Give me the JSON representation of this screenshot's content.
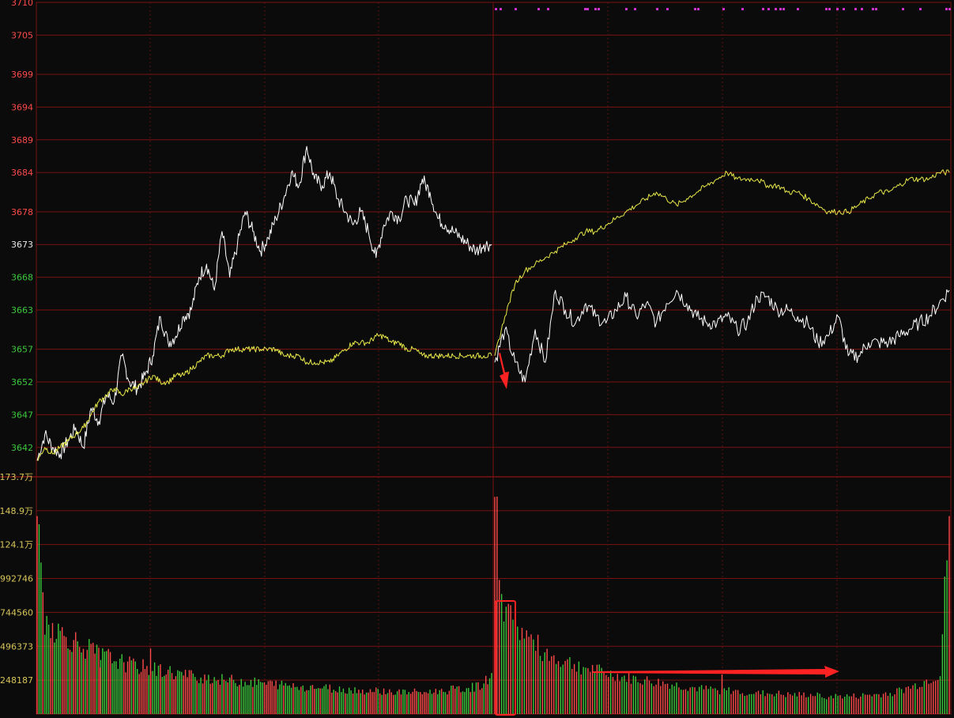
{
  "colors": {
    "background": "#0b0b0b",
    "grid": "#7a1212",
    "grid_dotted": "#5a1010",
    "price_line": "#ffffff",
    "avg_line": "#e8e84a",
    "up_color": "#ff4a4a",
    "down_color": "#3cc83c",
    "neutral_color": "#e6e6e6",
    "volume_label_color": "#d8c45a",
    "marker_color": "#cc33cc",
    "annotation_color": "#ff2222"
  },
  "chart_data": [
    {
      "type": "line",
      "title": "",
      "y_ticks": [
        {
          "value": 3710,
          "label": "3710",
          "kind": "up"
        },
        {
          "value": 3705,
          "label": "3705",
          "kind": "up"
        },
        {
          "value": 3699,
          "label": "3699",
          "kind": "up"
        },
        {
          "value": 3694,
          "label": "3694",
          "kind": "up"
        },
        {
          "value": 3689,
          "label": "3689",
          "kind": "up"
        },
        {
          "value": 3684,
          "label": "3684",
          "kind": "up"
        },
        {
          "value": 3678,
          "label": "3678",
          "kind": "up"
        },
        {
          "value": 3673,
          "label": "3673",
          "kind": "neutral"
        },
        {
          "value": 3668,
          "label": "3668",
          "kind": "down"
        },
        {
          "value": 3663,
          "label": "3663",
          "kind": "down"
        },
        {
          "value": 3657,
          "label": "3657",
          "kind": "down"
        },
        {
          "value": 3652,
          "label": "3652",
          "kind": "down"
        },
        {
          "value": 3647,
          "label": "3647",
          "kind": "down"
        },
        {
          "value": 3642,
          "label": "3642",
          "kind": "down"
        }
      ],
      "ylim": [
        3637.5,
        3710
      ],
      "x_sessions": 2,
      "series": [
        {
          "role": "price",
          "session1": [
            3640,
            3644,
            3642,
            3641,
            3643,
            3645,
            3642,
            3648,
            3646,
            3650,
            3649,
            3656,
            3652,
            3651,
            3653,
            3656,
            3662,
            3658,
            3659,
            3662,
            3663,
            3668,
            3670,
            3666,
            3675,
            3668,
            3673,
            3678,
            3675,
            3672,
            3674,
            3677,
            3680,
            3684,
            3682,
            3688,
            3683,
            3682,
            3684,
            3680,
            3678,
            3676,
            3678,
            3675,
            3671,
            3676,
            3678,
            3677,
            3680,
            3679,
            3683,
            3681,
            3677,
            3676,
            3675,
            3674,
            3673,
            3672,
            3673,
            3673
          ],
          "session2": [
            3655,
            3660,
            3655,
            3652,
            3660,
            3655,
            3666,
            3663,
            3661,
            3664,
            3662,
            3661,
            3663,
            3665,
            3662,
            3664,
            3661,
            3664,
            3666,
            3664,
            3662,
            3661,
            3661,
            3662,
            3660,
            3661,
            3665,
            3665,
            3663,
            3663,
            3662,
            3661,
            3658,
            3659,
            3662,
            3656,
            3656,
            3658,
            3658,
            3658,
            3659,
            3660,
            3661,
            3662,
            3664,
            3666
          ]
        },
        {
          "role": "average",
          "session1": [
            3640,
            3642,
            3641,
            3642,
            3643,
            3644,
            3645,
            3647,
            3649,
            3650,
            3651,
            3650,
            3651,
            3651,
            3652,
            3653,
            3652,
            3652,
            3653,
            3653,
            3654,
            3655,
            3656,
            3656,
            3656,
            3657,
            3657,
            3657,
            3657,
            3657,
            3657,
            3657,
            3656,
            3656,
            3656,
            3655,
            3655,
            3655,
            3655,
            3656,
            3657,
            3658,
            3658,
            3658,
            3659,
            3659,
            3658,
            3658,
            3657,
            3657,
            3656,
            3656,
            3656,
            3656,
            3656,
            3656,
            3656,
            3656,
            3656,
            3656
          ],
          "session2": [
            3656,
            3662,
            3667,
            3669,
            3670,
            3671,
            3672,
            3673,
            3674,
            3675,
            3675,
            3676,
            3677,
            3678,
            3679,
            3680,
            3681,
            3680,
            3679,
            3680,
            3681,
            3682,
            3683,
            3684,
            3683,
            3683,
            3683,
            3682,
            3682,
            3681,
            3681,
            3680,
            3679,
            3678,
            3678,
            3678,
            3679,
            3680,
            3681,
            3681,
            3682,
            3683,
            3683,
            3683,
            3684,
            3684
          ]
        }
      ],
      "top_markers": [
        626,
        632,
        651,
        680,
        692,
        739,
        742,
        752,
        756,
        791,
        802,
        830,
        843,
        878,
        882,
        914,
        938,
        964,
        971,
        980,
        986,
        990,
        1008,
        1044,
        1048,
        1058,
        1066,
        1081,
        1089,
        1103,
        1107,
        1141,
        1163,
        1196,
        1200
      ]
    },
    {
      "type": "bar",
      "title": "",
      "y_ticks": [
        {
          "value": 1737000,
          "label": "173.7万"
        },
        {
          "value": 1489000,
          "label": "148.9万"
        },
        {
          "value": 1241000,
          "label": "124.1万"
        },
        {
          "value": 992746,
          "label": "992746"
        },
        {
          "value": 744560,
          "label": "744560"
        },
        {
          "value": 496373,
          "label": "496373"
        },
        {
          "value": 248187,
          "label": "248187"
        }
      ],
      "ylim": [
        0,
        1737000
      ],
      "session1_values": [
        1450000,
        690000,
        640000,
        590000,
        560000,
        530000,
        490000,
        470000,
        430000,
        420000,
        400000,
        380000,
        360000,
        350000,
        340000,
        330000,
        320000,
        310000,
        300000,
        290000,
        280000,
        270000,
        270000,
        260000,
        250000,
        250000,
        240000,
        240000,
        230000,
        230000,
        220000,
        220000,
        210000,
        210000,
        200000,
        200000,
        200000,
        190000,
        190000,
        180000,
        180000,
        180000,
        170000,
        170000,
        170000,
        170000,
        160000,
        160000,
        160000,
        160000,
        160000,
        160000,
        170000,
        170000,
        180000,
        180000,
        190000,
        200000,
        220000,
        300000
      ],
      "session2_values": [
        1590000,
        780000,
        680000,
        600000,
        540000,
        480000,
        430000,
        400000,
        380000,
        360000,
        340000,
        320000,
        300000,
        290000,
        270000,
        260000,
        250000,
        240000,
        230000,
        220000,
        210000,
        200000,
        190000,
        180000,
        180000,
        170000,
        170000,
        160000,
        160000,
        150000,
        150000,
        150000,
        140000,
        140000,
        140000,
        140000,
        130000,
        130000,
        130000,
        130000,
        130000,
        140000,
        140000,
        150000,
        160000,
        180000,
        200000,
        230000,
        260000,
        290000,
        1450000
      ],
      "spikes": [
        {
          "session": 1,
          "position": 0.25,
          "value": 480000
        },
        {
          "session": 1,
          "position": 0.14,
          "value": 340000
        },
        {
          "session": 2,
          "position": 0.5,
          "value": 290000
        }
      ]
    }
  ],
  "annotations": {
    "down_arrow": "red-down-arrow",
    "highlight_box": "red-highlight-box",
    "right_arrow": "red-right-arrow"
  }
}
